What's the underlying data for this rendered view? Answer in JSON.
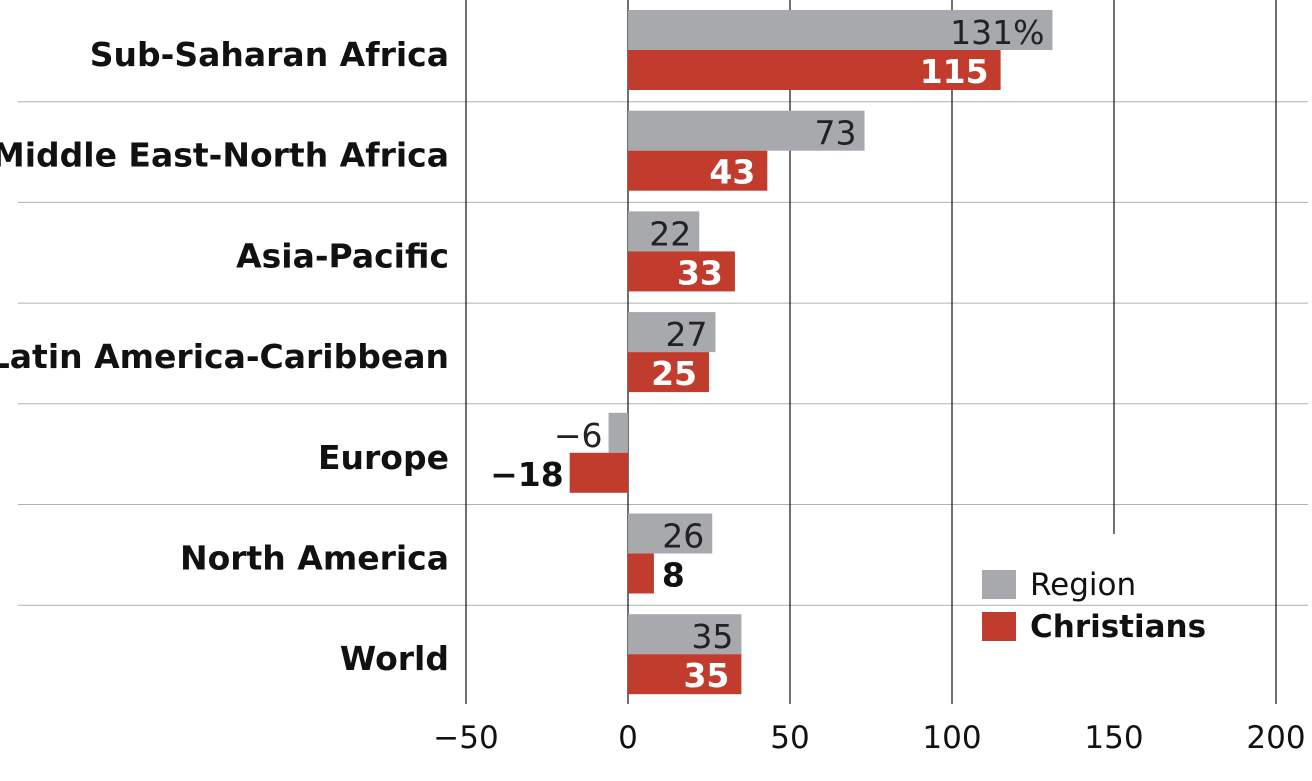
{
  "chart_data": {
    "type": "bar",
    "orientation": "horizontal",
    "categories": [
      "Sub-Saharan Africa",
      "Middle East-North Africa",
      "Asia-Pacific",
      "Latin America-Caribbean",
      "Europe",
      "North America",
      "World"
    ],
    "series": [
      {
        "name": "Region",
        "values": [
          131,
          73,
          22,
          27,
          -6,
          26,
          35
        ],
        "labels": [
          "131%",
          "73",
          "22",
          "27",
          "−6",
          "26",
          "35"
        ]
      },
      {
        "name": "Christians",
        "values": [
          115,
          43,
          33,
          25,
          -18,
          8,
          35
        ],
        "labels": [
          "115",
          "43",
          "33",
          "25",
          "−18",
          "8",
          "35"
        ]
      }
    ],
    "xlim": [
      -50,
      200
    ],
    "xticks": [
      -50,
      0,
      50,
      100,
      150,
      200
    ],
    "xtick_labels": [
      "−50",
      "0",
      "50",
      "100",
      "150",
      "200"
    ],
    "grid": "vertical",
    "legend": "bottom-right",
    "colors": {
      "Region": "#a7a9ac",
      "Christians": "#c13c2c"
    }
  }
}
